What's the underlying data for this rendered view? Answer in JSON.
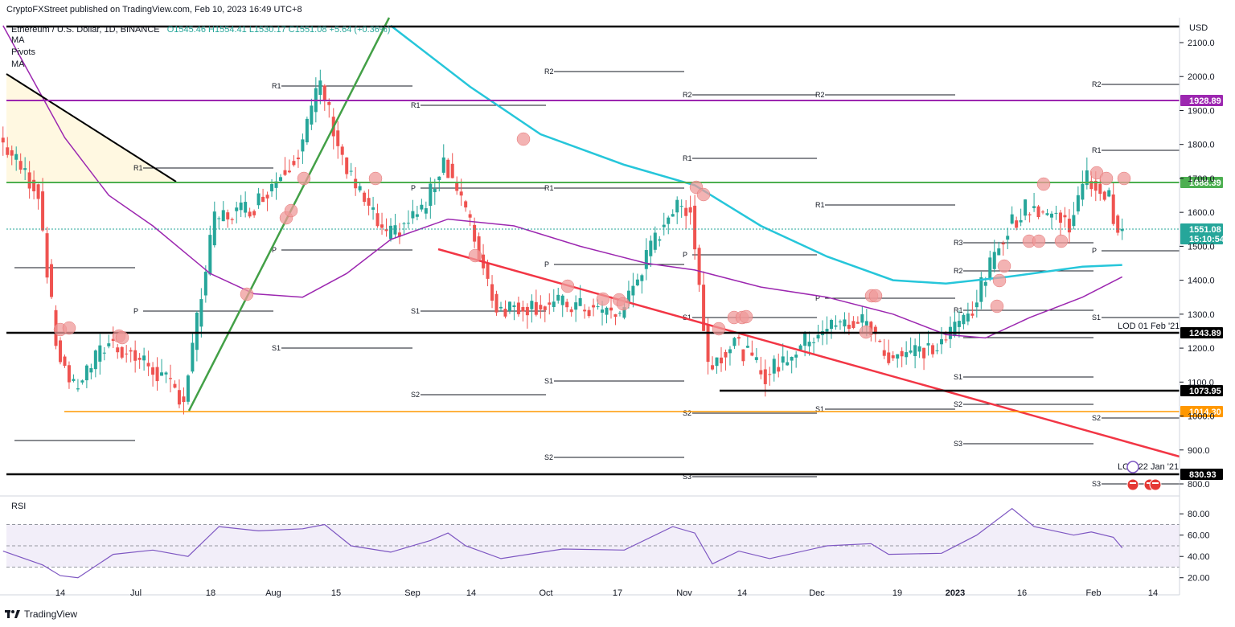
{
  "header": {
    "publisher": "CryptoFXStreet published on TradingView.com, Feb 10, 2023 16:49 UTC+8",
    "symbol_line": "Ethereum / U.S. Dollar, 1D, BINANCE",
    "ohlc": "O1545.46  H1554.41  L1530.17  C1551.08  +5.64 (+0.36%)"
  },
  "legend": [
    "MA",
    "Pivots",
    "MA"
  ],
  "footer": {
    "brand": "TradingView"
  },
  "colors": {
    "up": "#26a69a",
    "down": "#ef5350",
    "ma_short": "#9c27b0",
    "ma_long": "#26c6da",
    "trend_green": "#43a047",
    "trend_red": "#f23645",
    "resistance_purple": "#9c27b0",
    "resistance_green": "#4caf50",
    "support_orange": "#ff9800",
    "level_black": "#000000",
    "rsi": "#7e57c2",
    "rsi_band": "#ede7f6"
  },
  "chart_data": [
    {
      "type": "line",
      "title": "Ethereum / U.S. Dollar, 1D, BINANCE",
      "axis_currency": "USD",
      "x_ticks": [
        "14",
        "Jul",
        "18",
        "Aug",
        "15",
        "Sep",
        "14",
        "Oct",
        "17",
        "Nov",
        "14",
        "Dec",
        "19",
        "2023",
        "16",
        "Feb",
        "14"
      ],
      "y_ticks": [
        800,
        900,
        1000,
        1100,
        1200,
        1300,
        1400,
        1500,
        1600,
        1700,
        1800,
        1900,
        2000,
        2100
      ],
      "ylim": [
        760,
        2160
      ],
      "price_samples": {
        "x": [
          "Jun 01",
          "Jun 10",
          "Jun 14",
          "Jun 18",
          "Jun 26",
          "Jul 05",
          "Jul 13",
          "Jul 20",
          "Jul 29",
          "Aug 08",
          "Aug 13",
          "Aug 19",
          "Aug 28",
          "Sep 06",
          "Sep 10",
          "Sep 14",
          "Sep 22",
          "Oct 06",
          "Oct 20",
          "Oct 31",
          "Nov 05",
          "Nov 09",
          "Nov 15",
          "Nov 22",
          "Dec 05",
          "Dec 15",
          "Dec 19",
          "Dec 31",
          "Jan 08",
          "Jan 16",
          "Jan 21",
          "Jan 30",
          "Feb 03",
          "Feb 08",
          "Feb 10"
        ],
        "close": [
          1820,
          1660,
          1210,
          1080,
          1220,
          1150,
          1050,
          1580,
          1620,
          1780,
          1980,
          1720,
          1520,
          1620,
          1760,
          1640,
          1320,
          1330,
          1300,
          1600,
          1620,
          1150,
          1220,
          1120,
          1260,
          1280,
          1180,
          1200,
          1320,
          1560,
          1620,
          1570,
          1700,
          1640,
          1551
        ]
      },
      "moving_averages": [
        {
          "x": [
            "Jun 01",
            "Jun 15",
            "Jun 25",
            "Jul 05",
            "Jul 18",
            "Jul 28",
            "Aug 08",
            "Aug 18",
            "Aug 28",
            "Sep 10",
            "Sep 25",
            "Oct 10",
            "Oct 25",
            "Nov 05",
            "Nov 20",
            "Dec 05",
            "Dec 20",
            "Jan 01",
            "Jan 10",
            "Jan 20",
            "Feb 01",
            "Feb 10"
          ],
          "values": [
            2150,
            1820,
            1650,
            1560,
            1420,
            1360,
            1350,
            1420,
            1520,
            1580,
            1560,
            1500,
            1450,
            1430,
            1380,
            1350,
            1300,
            1240,
            1230,
            1290,
            1350,
            1410
          ]
        },
        {
          "x": [
            "Aug 28",
            "Sep 15",
            "Oct 01",
            "Oct 20",
            "Nov 05",
            "Nov 20",
            "Dec 05",
            "Dec 20",
            "Jan 01",
            "Jan 15",
            "Feb 01",
            "Feb 10"
          ],
          "values": [
            2150,
            1970,
            1830,
            1740,
            1680,
            1560,
            1470,
            1400,
            1390,
            1410,
            1440,
            1445
          ]
        }
      ],
      "levels": [
        {
          "label": "1928.89",
          "color": "#9c27b0"
        },
        {
          "label": "1688.39",
          "color": "#4caf50"
        },
        {
          "label": "1551.08",
          "sub": "15:10:54",
          "color": "#26a69a"
        },
        {
          "label": "1243.89",
          "color": "#000000"
        },
        {
          "label": "1073.95",
          "color": "#000000"
        },
        {
          "label": "1014.30",
          "color": "#ff9800"
        },
        {
          "label": "830.93",
          "color": "#000000"
        }
      ],
      "annotations": [
        "LOD 01 Feb '21",
        "LOD 22 Jan '21"
      ],
      "pivot_labels": [
        "R2",
        "R1",
        "P",
        "S1",
        "S2",
        "S3",
        "R3"
      ]
    },
    {
      "type": "line",
      "title": "RSI",
      "y_ticks": [
        20,
        40,
        60,
        80
      ],
      "ylim": [
        13,
        93
      ],
      "band": [
        30,
        70
      ],
      "x": [
        "Jun 01",
        "Jun 10",
        "Jun 14",
        "Jun 18",
        "Jun 26",
        "Jul 05",
        "Jul 13",
        "Jul 20",
        "Jul 29",
        "Aug 08",
        "Aug 13",
        "Aug 19",
        "Aug 28",
        "Sep 06",
        "Sep 10",
        "Sep 14",
        "Sep 22",
        "Oct 06",
        "Oct 20",
        "Oct 31",
        "Nov 05",
        "Nov 09",
        "Nov 15",
        "Nov 22",
        "Dec 05",
        "Dec 15",
        "Dec 19",
        "Dec 31",
        "Jan 08",
        "Jan 16",
        "Jan 21",
        "Jan 30",
        "Feb 03",
        "Feb 08",
        "Feb 10"
      ],
      "values": [
        45,
        32,
        22,
        20,
        42,
        46,
        40,
        68,
        64,
        66,
        70,
        50,
        44,
        55,
        62,
        50,
        38,
        47,
        46,
        68,
        62,
        33,
        45,
        38,
        50,
        52,
        42,
        43,
        60,
        85,
        68,
        60,
        63,
        58,
        48
      ]
    }
  ]
}
